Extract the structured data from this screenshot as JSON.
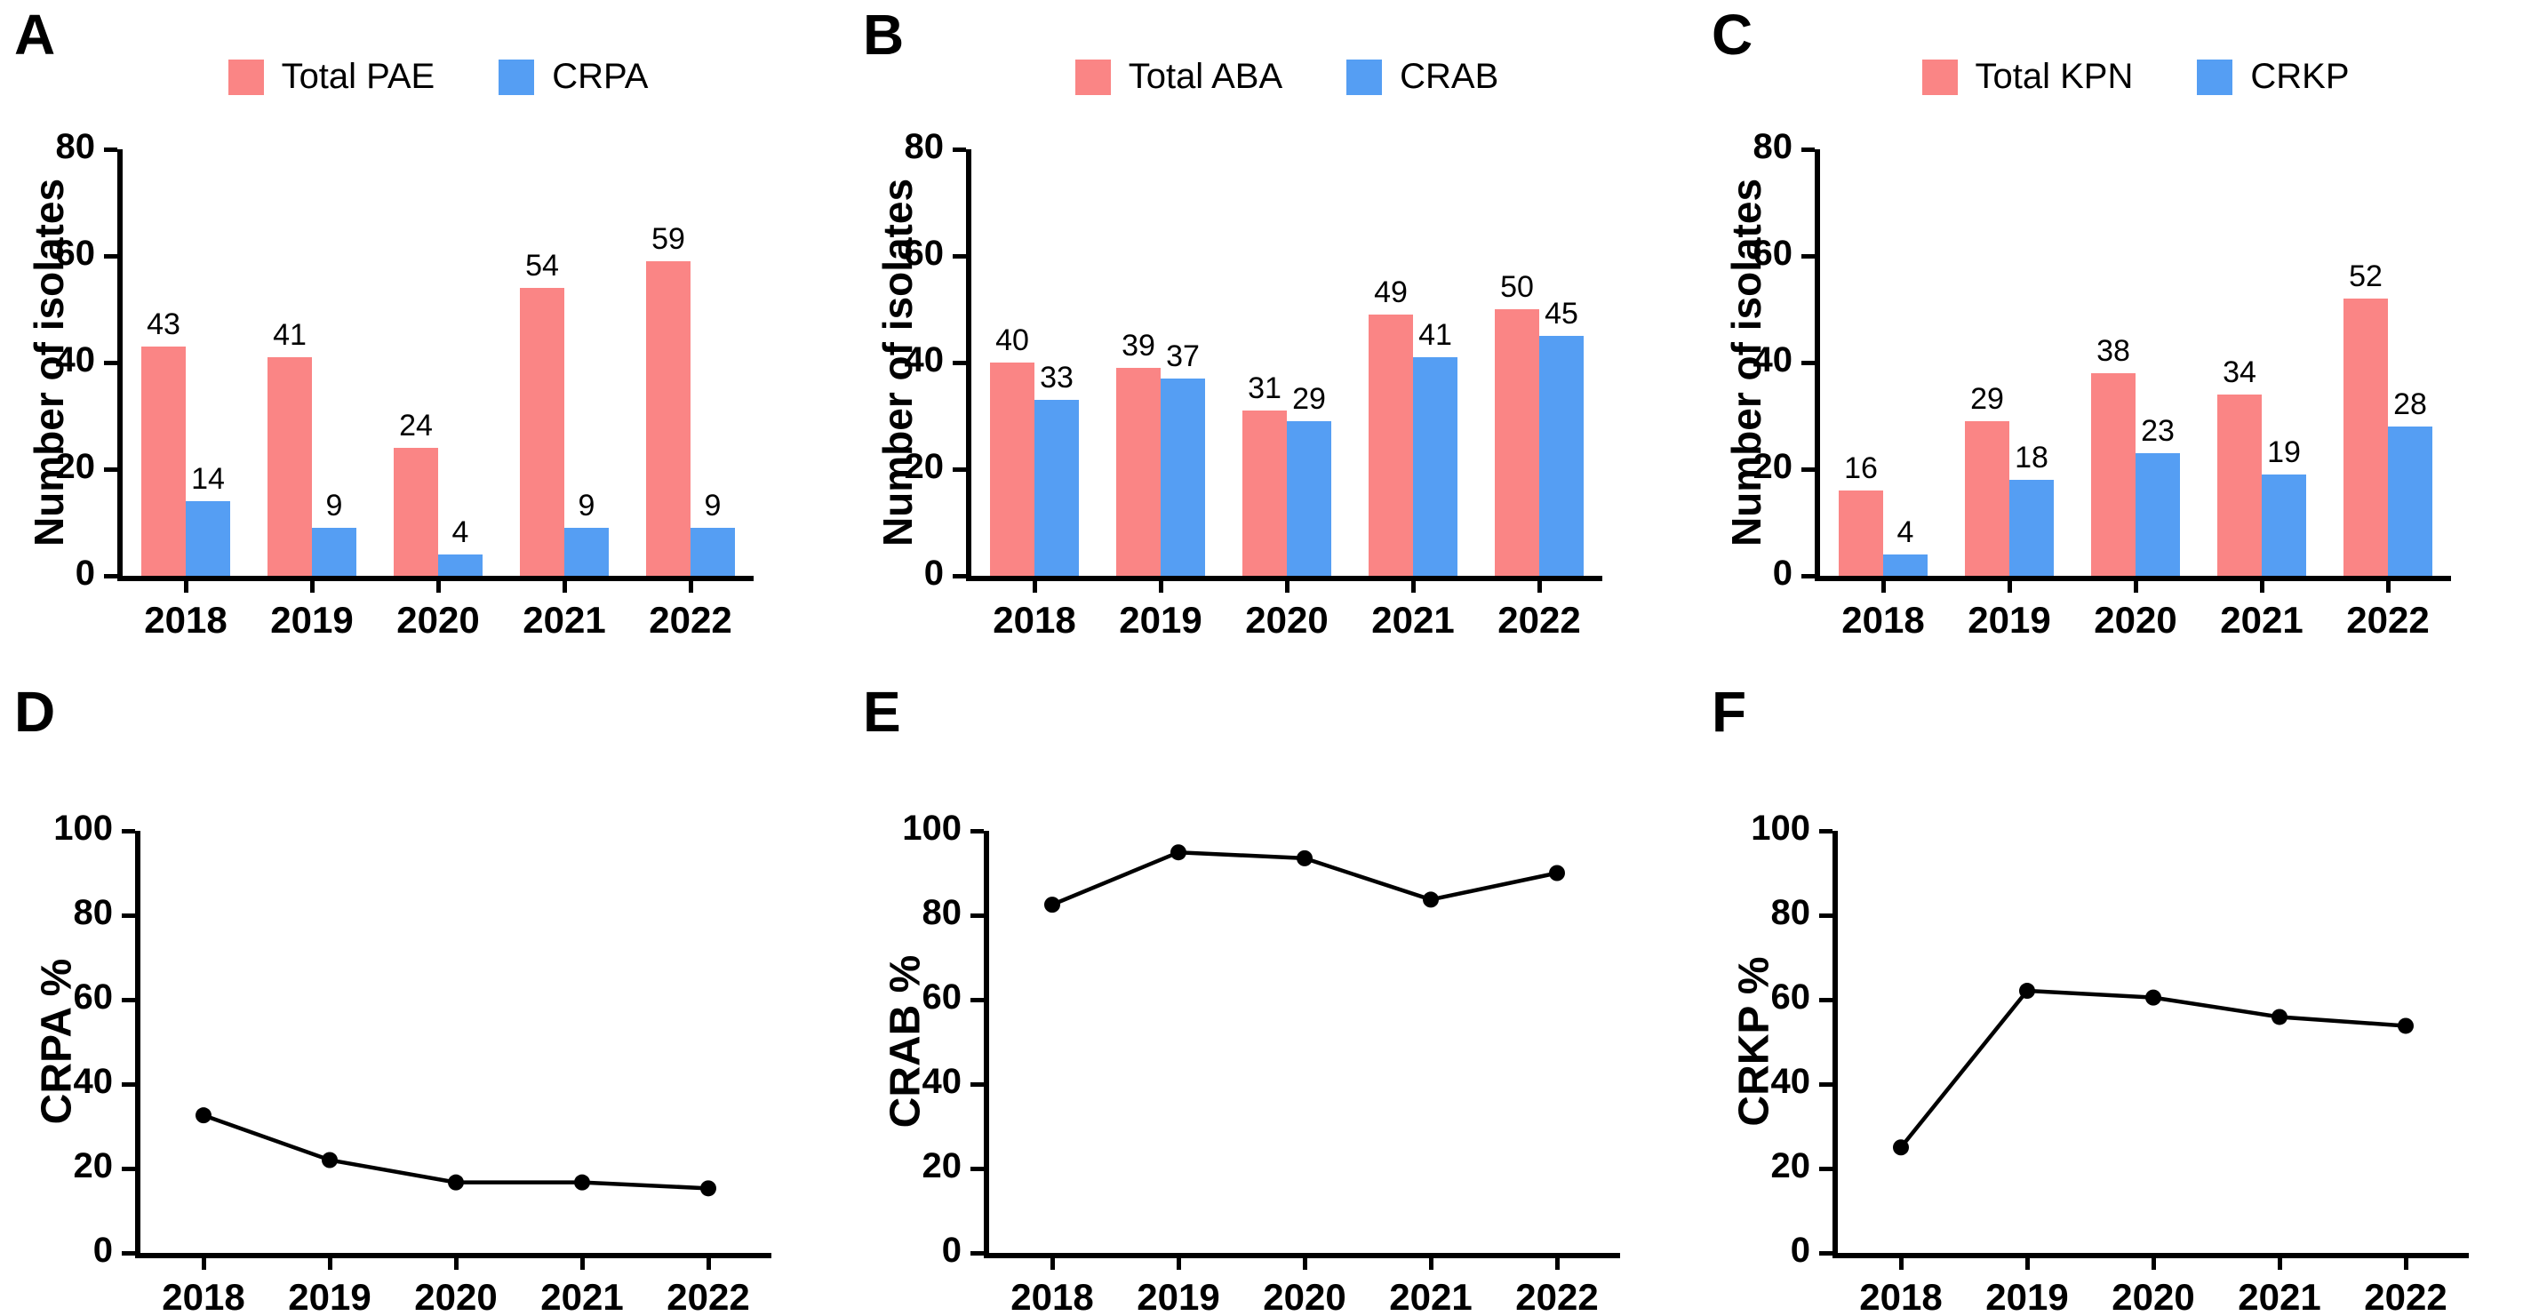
{
  "figure": {
    "background": "#FFFFFF"
  },
  "colors": {
    "total_series": "#FA8585",
    "resistant_series": "#559EF3",
    "line_series": "#000000",
    "axis": "#000000",
    "text": "#000000"
  },
  "chart_data": [
    {
      "panel_letter": "A",
      "type": "bar",
      "categories": [
        "2018",
        "2019",
        "2020",
        "2021",
        "2022"
      ],
      "series": [
        {
          "name": "Total PAE",
          "color_key": "total_series",
          "values": [
            43,
            41,
            24,
            54,
            59
          ]
        },
        {
          "name": "CRPA",
          "color_key": "resistant_series",
          "values": [
            14,
            9,
            4,
            9,
            9
          ]
        }
      ],
      "title": "",
      "xlabel": "",
      "ylabel": "Number of isolates",
      "ylim": [
        0,
        80
      ],
      "yticks": [
        0,
        20,
        40,
        60,
        80
      ],
      "grid": false,
      "legend_position": "top",
      "value_labels": true
    },
    {
      "panel_letter": "B",
      "type": "bar",
      "categories": [
        "2018",
        "2019",
        "2020",
        "2021",
        "2022"
      ],
      "series": [
        {
          "name": "Total ABA",
          "color_key": "total_series",
          "values": [
            40,
            39,
            31,
            49,
            50
          ]
        },
        {
          "name": "CRAB",
          "color_key": "resistant_series",
          "values": [
            33,
            37,
            29,
            41,
            45
          ]
        }
      ],
      "title": "",
      "xlabel": "",
      "ylabel": "Number of isolates",
      "ylim": [
        0,
        80
      ],
      "yticks": [
        0,
        20,
        40,
        60,
        80
      ],
      "grid": false,
      "legend_position": "top",
      "value_labels": true
    },
    {
      "panel_letter": "C",
      "type": "bar",
      "categories": [
        "2018",
        "2019",
        "2020",
        "2021",
        "2022"
      ],
      "series": [
        {
          "name": "Total KPN",
          "color_key": "total_series",
          "values": [
            16,
            29,
            38,
            34,
            52
          ]
        },
        {
          "name": "CRKP",
          "color_key": "resistant_series",
          "values": [
            4,
            18,
            23,
            19,
            28
          ]
        }
      ],
      "title": "",
      "xlabel": "",
      "ylabel": "Number of isolates",
      "ylim": [
        0,
        80
      ],
      "yticks": [
        0,
        20,
        40,
        60,
        80
      ],
      "grid": false,
      "legend_position": "top",
      "value_labels": true
    },
    {
      "panel_letter": "D",
      "type": "line",
      "categories": [
        "2018",
        "2019",
        "2020",
        "2021",
        "2022"
      ],
      "series": [
        {
          "name": "CRPA %",
          "color_key": "line_series",
          "values": [
            32.6,
            22.0,
            16.7,
            16.7,
            15.3
          ]
        }
      ],
      "title": "",
      "xlabel": "",
      "ylabel": "CRPA %",
      "ylim": [
        0,
        100
      ],
      "yticks": [
        0,
        20,
        40,
        60,
        80,
        100
      ],
      "grid": false,
      "legend_position": "none",
      "value_labels": false
    },
    {
      "panel_letter": "E",
      "type": "line",
      "categories": [
        "2018",
        "2019",
        "2020",
        "2021",
        "2022"
      ],
      "series": [
        {
          "name": "CRAB %",
          "color_key": "line_series",
          "values": [
            82.5,
            94.9,
            93.5,
            83.7,
            90.0
          ]
        }
      ],
      "title": "",
      "xlabel": "",
      "ylabel": "CRAB %",
      "ylim": [
        0,
        100
      ],
      "yticks": [
        0,
        20,
        40,
        60,
        80,
        100
      ],
      "grid": false,
      "legend_position": "none",
      "value_labels": false
    },
    {
      "panel_letter": "F",
      "type": "line",
      "categories": [
        "2018",
        "2019",
        "2020",
        "2021",
        "2022"
      ],
      "series": [
        {
          "name": "CRKP %",
          "color_key": "line_series",
          "values": [
            25.0,
            62.1,
            60.5,
            55.9,
            53.8
          ]
        }
      ],
      "title": "",
      "xlabel": "",
      "ylabel": "CRKP %",
      "ylim": [
        0,
        100
      ],
      "yticks": [
        0,
        20,
        40,
        60,
        80,
        100
      ],
      "grid": false,
      "legend_position": "none",
      "value_labels": false
    }
  ]
}
